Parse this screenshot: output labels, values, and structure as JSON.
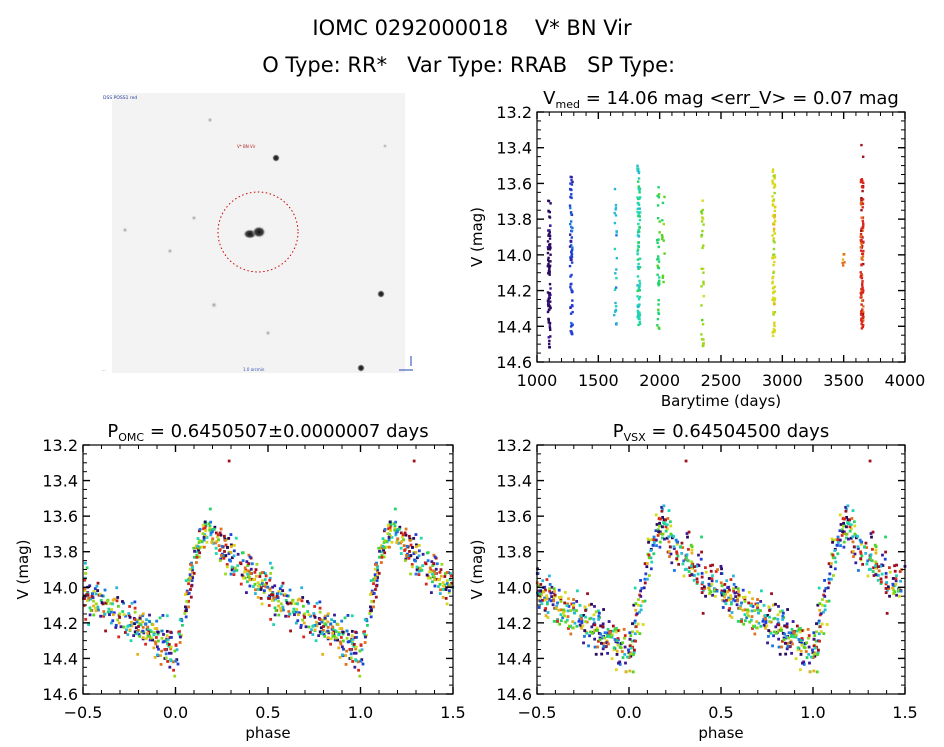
{
  "header": {
    "title_line1": "IOMC 0292000018    V* BN Vir",
    "title_line2": "O Type: RR*   Var Type: RRAB   SP Type: "
  },
  "image_panel": {
    "description": "grayscale sky thumbnail with dotted red aperture circle around target",
    "aperture_color": "#cc0000",
    "labels": {
      "top_left": "DSS POSS1 red",
      "top_mid": "V* BN Vir",
      "bottom_mid": "1.0 arcmin",
      "compass": "N / E"
    }
  },
  "colors": {
    "palette": [
      "#2a0a5e",
      "#3b1a9a",
      "#1f3fd6",
      "#1a78e0",
      "#29b6d8",
      "#1fd6b0",
      "#22d46a",
      "#55d41f",
      "#9ad81c",
      "#d8d81c",
      "#e6b21c",
      "#e0701c",
      "#d8281c",
      "#a0101c"
    ]
  },
  "chart_data": [
    {
      "id": "timeseries",
      "type": "scatter",
      "title": "V_med = 14.06 mag <err_V> = 0.07 mag",
      "title_parts": {
        "main": "V",
        "sub": "med",
        "rest": " = 14.06 mag <err_V> = 0.07 mag"
      },
      "xlabel": "Barytime (days)",
      "ylabel": "V (mag)",
      "xlim": [
        1000,
        4000
      ],
      "ylim": [
        14.6,
        13.2
      ],
      "xticks": [
        "1000",
        "1500",
        "2000",
        "2500",
        "3000",
        "3500",
        "4000"
      ],
      "yticks": [
        "13.2",
        "13.4",
        "13.6",
        "13.8",
        "14.0",
        "14.2",
        "14.4",
        "14.6"
      ],
      "groups": [
        {
          "x": 1100,
          "ymin": 13.66,
          "ymax": 14.52,
          "n": 90,
          "color_index": 0
        },
        {
          "x": 1280,
          "ymin": 13.54,
          "ymax": 14.46,
          "n": 70,
          "color_index": 2
        },
        {
          "x": 1640,
          "ymin": 13.62,
          "ymax": 14.39,
          "n": 25,
          "color_index": 4
        },
        {
          "x": 1830,
          "ymin": 13.5,
          "ymax": 14.41,
          "n": 90,
          "color_index": 5
        },
        {
          "x": 1990,
          "ymin": 13.61,
          "ymax": 14.44,
          "n": 35,
          "color_index": 6
        },
        {
          "x": 2030,
          "ymin": 13.65,
          "ymax": 14.2,
          "n": 12,
          "color_index": 7
        },
        {
          "x": 2350,
          "ymin": 13.66,
          "ymax": 14.54,
          "n": 30,
          "color_index": 8
        },
        {
          "x": 2930,
          "ymin": 13.51,
          "ymax": 14.48,
          "n": 80,
          "color_index": 9
        },
        {
          "x": 3500,
          "ymin": 13.99,
          "ymax": 14.06,
          "n": 6,
          "color_index": 11
        },
        {
          "x": 3650,
          "ymin": 13.57,
          "ymax": 14.42,
          "n": 110,
          "color_index": 12
        },
        {
          "x": 3650,
          "ymin": 13.29,
          "ymax": 13.46,
          "n": 2,
          "color_index": 13
        }
      ]
    },
    {
      "id": "phase_omc",
      "type": "scatter",
      "title": "P_OMC = 0.6450507±0.0000007 days",
      "title_parts": {
        "main": "P",
        "sub": "OMC",
        "rest": " = 0.6450507±0.0000007 days"
      },
      "xlabel": "phase",
      "ylabel": "V (mag)",
      "xlim": [
        -0.5,
        1.5
      ],
      "ylim": [
        14.6,
        13.2
      ],
      "xticks": [
        "-0.5",
        "0.0",
        "0.5",
        "1.0",
        "1.5"
      ],
      "yticks": [
        "13.2",
        "13.4",
        "13.6",
        "13.8",
        "14.0",
        "14.2",
        "14.4",
        "14.6"
      ],
      "light_curve_template": {
        "phase": [
          0.0,
          0.05,
          0.1,
          0.17,
          0.25,
          0.35,
          0.5,
          0.65,
          0.8,
          0.92,
          1.0
        ],
        "mag": [
          14.36,
          14.15,
          13.85,
          13.65,
          13.78,
          13.88,
          14.02,
          14.13,
          14.22,
          14.3,
          14.36
        ]
      },
      "scatter_sigma_mag": 0.06,
      "n_points": 500,
      "outliers": [
        {
          "phase": 0.29,
          "mag": 13.29
        },
        {
          "phase": 1.29,
          "mag": 13.29
        }
      ]
    },
    {
      "id": "phase_vsx",
      "type": "scatter",
      "title": "P_VSX = 0.64504500 days",
      "title_parts": {
        "main": "P",
        "sub": "VSX",
        "rest": " = 0.64504500 days"
      },
      "xlabel": "phase",
      "ylabel": "V (mag)",
      "xlim": [
        -0.5,
        1.5
      ],
      "ylim": [
        14.6,
        13.2
      ],
      "xticks": [
        "-0.5",
        "0.0",
        "0.5",
        "1.0",
        "1.5"
      ],
      "yticks": [
        "13.2",
        "13.4",
        "13.6",
        "13.8",
        "14.0",
        "14.2",
        "14.4",
        "14.6"
      ],
      "light_curve_template": {
        "phase": [
          0.0,
          0.05,
          0.1,
          0.17,
          0.25,
          0.35,
          0.5,
          0.65,
          0.8,
          0.92,
          1.0
        ],
        "mag": [
          14.36,
          14.15,
          13.85,
          13.65,
          13.78,
          13.88,
          14.02,
          14.13,
          14.22,
          14.3,
          14.36
        ]
      },
      "scatter_sigma_mag": 0.065,
      "n_points": 500,
      "outliers": [
        {
          "phase": 0.31,
          "mag": 13.29
        },
        {
          "phase": 1.31,
          "mag": 13.29
        }
      ]
    }
  ]
}
